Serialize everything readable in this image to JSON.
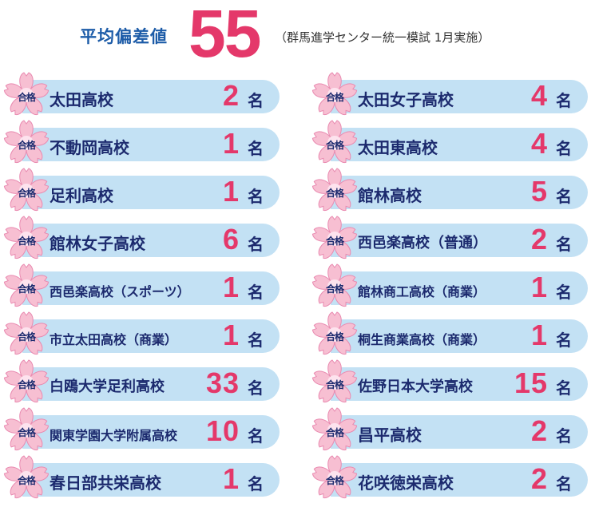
{
  "header": {
    "lead": "平均偏差値",
    "average": "55",
    "note": "（群馬進学センター統一模試 1月実施）"
  },
  "badge_label": "合格",
  "unit_label": "名",
  "colors": {
    "pink": "#e4386a",
    "navy": "#1c2a6e",
    "bar": "#c3e1f4",
    "blossom": "#f7bfd2"
  },
  "left": [
    {
      "school": "太田高校",
      "count": "2"
    },
    {
      "school": "不動岡高校",
      "count": "1"
    },
    {
      "school": "足利高校",
      "count": "1"
    },
    {
      "school": "館林女子高校",
      "count": "6"
    },
    {
      "school": "西邑楽高校（スポーツ）",
      "count": "1"
    },
    {
      "school": "市立太田高校（商業）",
      "count": "1"
    },
    {
      "school": "白鴎大学足利高校",
      "count": "33"
    },
    {
      "school": "関東学園大学附属高校",
      "count": "10"
    },
    {
      "school": "春日部共栄高校",
      "count": "1"
    }
  ],
  "right": [
    {
      "school": "太田女子高校",
      "count": "4"
    },
    {
      "school": "太田東高校",
      "count": "4"
    },
    {
      "school": "館林高校",
      "count": "5"
    },
    {
      "school": "西邑楽高校（普通）",
      "count": "2"
    },
    {
      "school": "館林商工高校（商業）",
      "count": "1"
    },
    {
      "school": "桐生商業高校（商業）",
      "count": "1"
    },
    {
      "school": "佐野日本大学高校",
      "count": "15"
    },
    {
      "school": "昌平高校",
      "count": "2"
    },
    {
      "school": "花咲徳栄高校",
      "count": "2"
    }
  ]
}
